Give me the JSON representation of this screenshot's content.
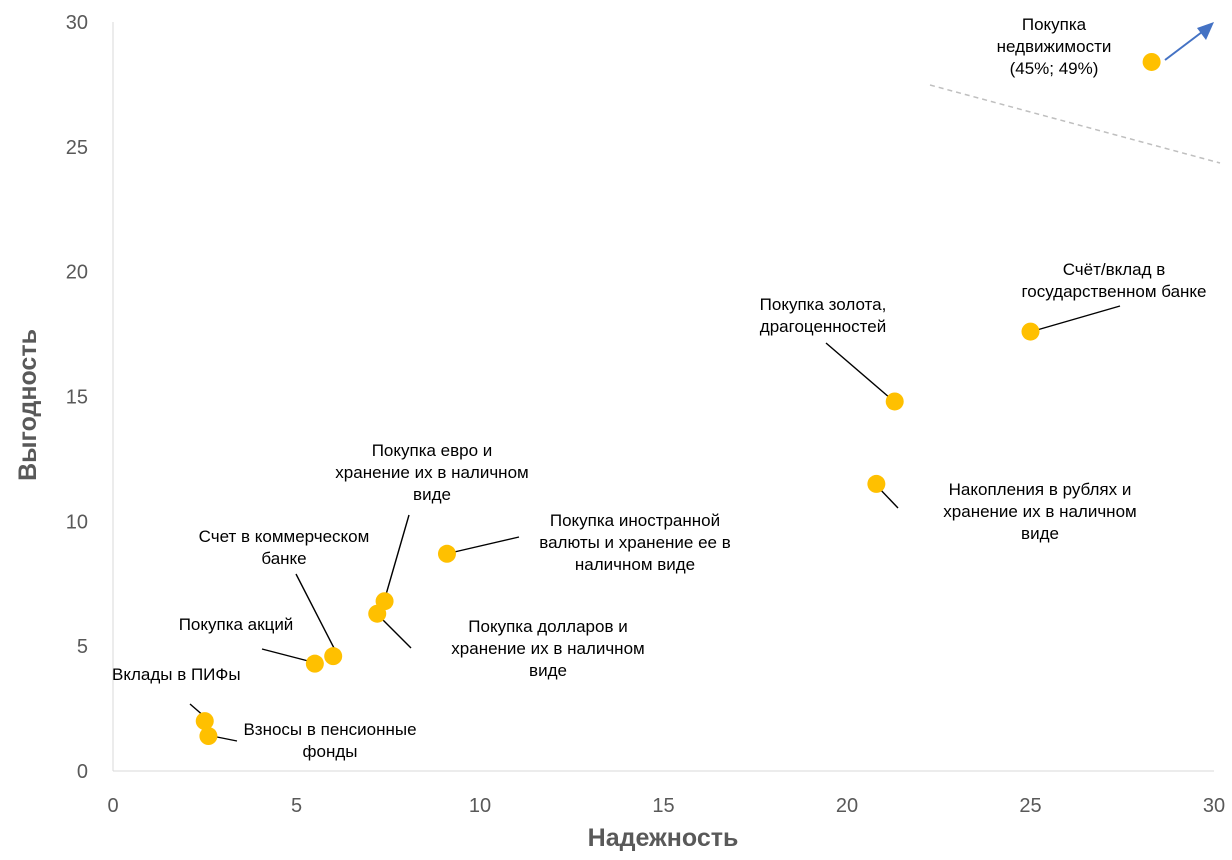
{
  "chart_data": {
    "type": "scatter",
    "xlabel": "Надежность",
    "ylabel": "Выгодность",
    "xlim": [
      0,
      30
    ],
    "ylim": [
      0,
      30
    ],
    "x_ticks": [
      "0",
      "5",
      "10",
      "15",
      "20",
      "25",
      "30"
    ],
    "y_ticks": [
      "0",
      "5",
      "10",
      "15",
      "20",
      "25",
      "30"
    ],
    "grid": false,
    "point_color": "#FFC000",
    "arrow_color": "#4472C4",
    "points": [
      {
        "label": [
          "Вклады в ПИФы"
        ],
        "x": 2.5,
        "y": 2.0
      },
      {
        "label": [
          "Взносы в пенсионные",
          "фонды"
        ],
        "x": 2.6,
        "y": 1.4
      },
      {
        "label": [
          "Покупка акций"
        ],
        "x": 5.5,
        "y": 4.3
      },
      {
        "label": [
          "Счет в коммерческом",
          "банке"
        ],
        "x": 6.0,
        "y": 4.6
      },
      {
        "label": [
          "Покупка долларов и",
          "хранение их в наличном",
          "виде"
        ],
        "x": 7.2,
        "y": 6.3
      },
      {
        "label": [
          "Покупка евро и",
          "хранение их в наличном",
          "виде"
        ],
        "x": 7.4,
        "y": 6.8
      },
      {
        "label": [
          "Покупка иностранной",
          "валюты и хранение ее в",
          "наличном виде"
        ],
        "x": 9.1,
        "y": 8.7
      },
      {
        "label": [
          "Накопления в рублях и",
          "хранение их в наличном",
          "виде"
        ],
        "x": 20.8,
        "y": 11.5
      },
      {
        "label": [
          "Покупка золота,",
          "драгоценностей"
        ],
        "x": 21.3,
        "y": 14.8
      },
      {
        "label": [
          "Счёт/вклад в",
          "государственном банке"
        ],
        "x": 25.0,
        "y": 17.6
      },
      {
        "label": [
          "Покупка",
          "недвижимости",
          "(45%; 49%)"
        ],
        "x": 28.3,
        "y": 28.4
      }
    ]
  }
}
